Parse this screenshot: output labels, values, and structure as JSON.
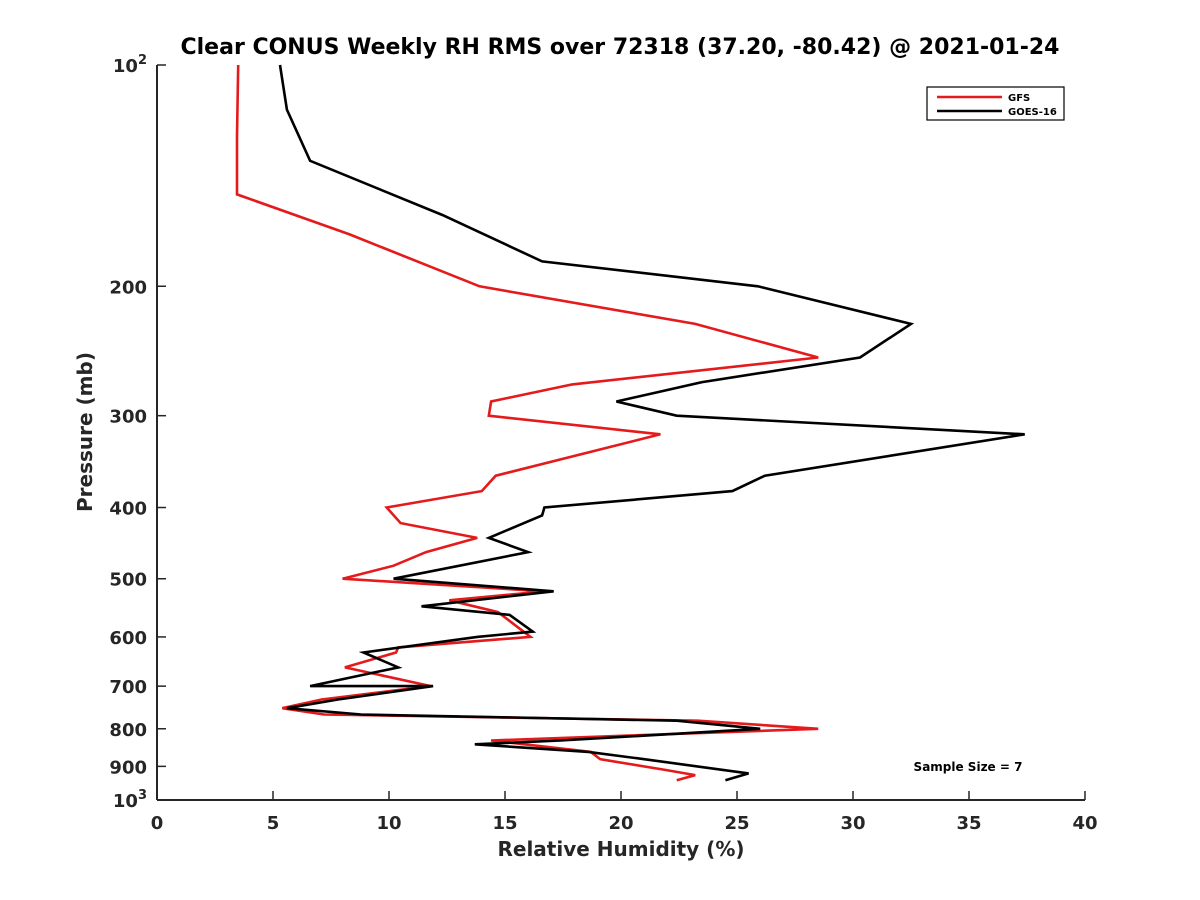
{
  "chart_data": {
    "type": "line",
    "title": "Clear CONUS Weekly RH RMS over 72318 (37.20, -80.42) @ 2021-01-24",
    "xlabel": "Relative Humidity (%)",
    "ylabel": "Pressure (mb)",
    "xlim": [
      0,
      40
    ],
    "ylim": [
      100,
      1000
    ],
    "y_scale": "log",
    "y_reversed": true,
    "x_ticks": [
      0,
      5,
      10,
      15,
      20,
      25,
      30,
      35,
      40
    ],
    "x_tick_labels": [
      "0",
      "5",
      "10",
      "15",
      "20",
      "25",
      "30",
      "35",
      "40"
    ],
    "y_ticks": [
      100,
      200,
      300,
      400,
      500,
      600,
      700,
      800,
      900,
      1000
    ],
    "y_tick_labels": [
      {
        "base": "10",
        "exp": "2"
      },
      {
        "base": "200",
        "exp": ""
      },
      {
        "base": "300",
        "exp": ""
      },
      {
        "base": "400",
        "exp": ""
      },
      {
        "base": "500",
        "exp": ""
      },
      {
        "base": "600",
        "exp": ""
      },
      {
        "base": "700",
        "exp": ""
      },
      {
        "base": "800",
        "exp": ""
      },
      {
        "base": "900",
        "exp": ""
      },
      {
        "base": "10",
        "exp": "3"
      }
    ],
    "grid": false,
    "legend_position": "top-right",
    "annotation": "Sample Size = 7",
    "series": [
      {
        "name": "GFS",
        "color": "#e41a1c",
        "points": [
          [
            3.5,
            100
          ],
          [
            3.45,
            125
          ],
          [
            3.45,
            150
          ],
          [
            8.3,
            170
          ],
          [
            13.9,
            200
          ],
          [
            23.2,
            225
          ],
          [
            28.5,
            250
          ],
          [
            17.9,
            272
          ],
          [
            14.4,
            287
          ],
          [
            14.3,
            300
          ],
          [
            21.7,
            318
          ],
          [
            14.6,
            362
          ],
          [
            14.0,
            380
          ],
          [
            9.9,
            400
          ],
          [
            10.5,
            420
          ],
          [
            13.8,
            440
          ],
          [
            11.6,
            460
          ],
          [
            10.2,
            480
          ],
          [
            8.0,
            500
          ],
          [
            16.7,
            520
          ],
          [
            12.6,
            535
          ],
          [
            14.7,
            555
          ],
          [
            16.1,
            600
          ],
          [
            10.4,
            620
          ],
          [
            10.3,
            630
          ],
          [
            8.1,
            660
          ],
          [
            11.8,
            700
          ],
          [
            7.1,
            730
          ],
          [
            5.4,
            750
          ],
          [
            7.2,
            765
          ],
          [
            23.3,
            780
          ],
          [
            28.5,
            800
          ],
          [
            14.4,
            830
          ],
          [
            18.7,
            860
          ],
          [
            19.1,
            880
          ],
          [
            21.9,
            910
          ],
          [
            23.2,
            925
          ],
          [
            22.4,
            940
          ]
        ]
      },
      {
        "name": "GOES-16",
        "color": "#000000",
        "points": [
          [
            5.3,
            100
          ],
          [
            5.6,
            115
          ],
          [
            6.6,
            135
          ],
          [
            12.3,
            160
          ],
          [
            16.6,
            185
          ],
          [
            25.9,
            200
          ],
          [
            32.5,
            225
          ],
          [
            30.3,
            250
          ],
          [
            23.5,
            270
          ],
          [
            19.8,
            287
          ],
          [
            22.4,
            300
          ],
          [
            37.4,
            318
          ],
          [
            26.2,
            362
          ],
          [
            24.8,
            380
          ],
          [
            16.7,
            400
          ],
          [
            16.6,
            410
          ],
          [
            14.3,
            440
          ],
          [
            16.0,
            460
          ],
          [
            10.2,
            500
          ],
          [
            17.1,
            520
          ],
          [
            11.4,
            545
          ],
          [
            15.2,
            560
          ],
          [
            16.2,
            590
          ],
          [
            13.8,
            600
          ],
          [
            8.9,
            630
          ],
          [
            10.4,
            660
          ],
          [
            6.6,
            700
          ],
          [
            11.9,
            700
          ],
          [
            7.8,
            730
          ],
          [
            5.6,
            750
          ],
          [
            8.8,
            765
          ],
          [
            22.4,
            780
          ],
          [
            26.0,
            800
          ],
          [
            17.4,
            830
          ],
          [
            13.7,
            840
          ],
          [
            18.6,
            860
          ],
          [
            21.0,
            880
          ],
          [
            25.5,
            920
          ],
          [
            24.5,
            940
          ]
        ]
      }
    ]
  }
}
